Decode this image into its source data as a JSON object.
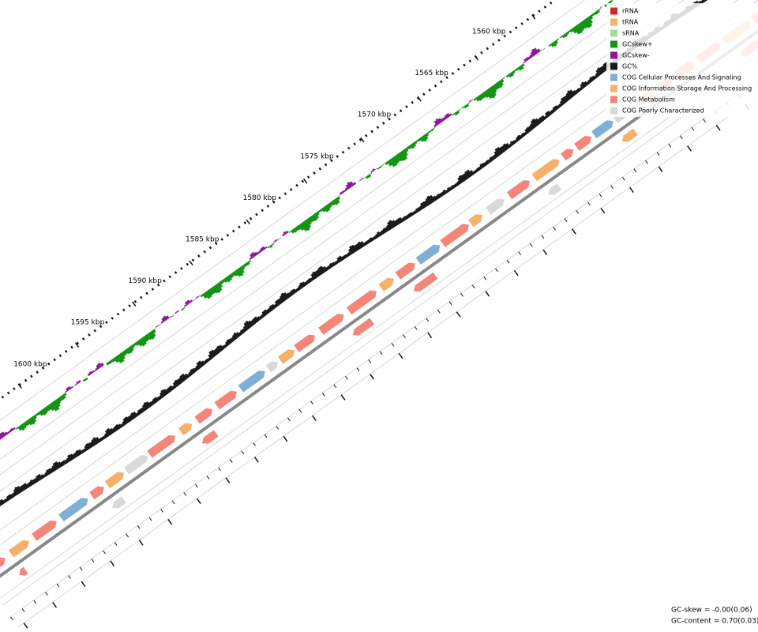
{
  "ticks": [
    "1560 kbp",
    "1565 kbp",
    "1570 kbp",
    "1575 kbp",
    "1580 kbp",
    "1585 kbp",
    "1590 kbp",
    "1595 kbp",
    "1600 kbp"
  ],
  "legend": {
    "items": [
      {
        "label": "rRNA",
        "color": "#d62728"
      },
      {
        "label": "tRNA",
        "color": "#f5b06a"
      },
      {
        "label": "sRNA",
        "color": "#a6d99a"
      },
      {
        "label": "GCskew+",
        "color": "#139413"
      },
      {
        "label": "GCskew-",
        "color": "#8b1a9a"
      },
      {
        "label": "GC%",
        "color": "#1a1a1a"
      },
      {
        "label": "COG Cellular Processes And Signaling",
        "color": "#7fafd6"
      },
      {
        "label": "COG Information Storage And Processing",
        "color": "#f5b06a"
      },
      {
        "label": "COG Metabolism",
        "color": "#f4857a"
      },
      {
        "label": "COG Poorly Characterized",
        "color": "#d9d9d9"
      }
    ]
  },
  "stats": {
    "gc_skew": "GC-skew = -0.00(0.06)",
    "gc_content": "GC-content = 0.70(0.03)"
  }
}
